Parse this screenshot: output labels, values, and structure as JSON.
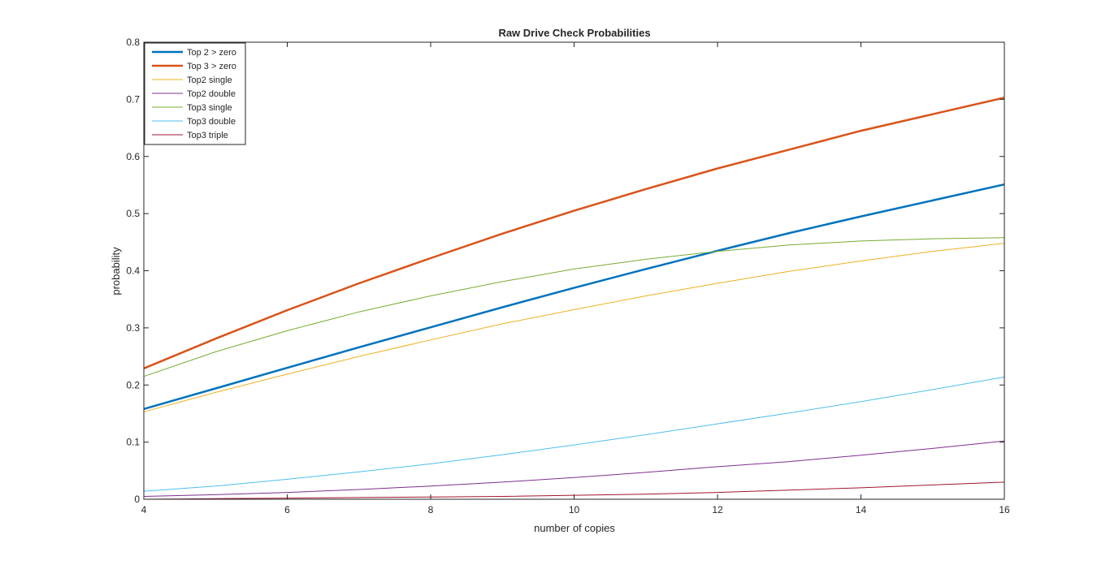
{
  "chart_data": {
    "type": "line",
    "title": "Raw Drive Check Probabilities",
    "xlabel": "number of copies",
    "ylabel": "probability",
    "xlim": [
      4,
      16
    ],
    "ylim": [
      0,
      0.8
    ],
    "x_ticks": [
      "4",
      "6",
      "8",
      "10",
      "12",
      "14",
      "16"
    ],
    "y_ticks": [
      "0",
      "0.1",
      "0.2",
      "0.3",
      "0.4",
      "0.5",
      "0.6",
      "0.7",
      "0.8"
    ],
    "grid": false,
    "legend_position": "top-left",
    "x": [
      4,
      5,
      6,
      7,
      8,
      9,
      10,
      11,
      12,
      13,
      14,
      15,
      16
    ],
    "series": [
      {
        "name": "Top 2 > zero",
        "color": "#0072BD",
        "thick": true,
        "values": [
          0.158,
          0.194,
          0.23,
          0.266,
          0.301,
          0.336,
          0.37,
          0.403,
          0.435,
          0.466,
          0.495,
          0.523,
          0.551
        ]
      },
      {
        "name": "Top 3 > zero",
        "color": "#D95319",
        "thick": true,
        "values": [
          0.229,
          0.281,
          0.331,
          0.378,
          0.422,
          0.465,
          0.505,
          0.543,
          0.579,
          0.612,
          0.645,
          0.674,
          0.703
        ]
      },
      {
        "name": "Top2 single",
        "color": "#EDB120",
        "thick": false,
        "values": [
          0.153,
          0.187,
          0.219,
          0.25,
          0.279,
          0.307,
          0.332,
          0.356,
          0.378,
          0.399,
          0.417,
          0.434,
          0.448
        ]
      },
      {
        "name": "Top2 double",
        "color": "#7E2F8E",
        "thick": false,
        "values": [
          0.005,
          0.008,
          0.012,
          0.017,
          0.023,
          0.03,
          0.038,
          0.047,
          0.057,
          0.066,
          0.077,
          0.089,
          0.102
        ]
      },
      {
        "name": "Top3 single",
        "color": "#77AC30",
        "thick": false,
        "values": [
          0.215,
          0.258,
          0.295,
          0.328,
          0.356,
          0.381,
          0.403,
          0.42,
          0.434,
          0.445,
          0.452,
          0.456,
          0.458
        ]
      },
      {
        "name": "Top3 double",
        "color": "#4DBEEE",
        "thick": false,
        "values": [
          0.014,
          0.023,
          0.035,
          0.048,
          0.062,
          0.078,
          0.095,
          0.113,
          0.132,
          0.151,
          0.171,
          0.192,
          0.214
        ]
      },
      {
        "name": "Top3 triple",
        "color": "#A2142F",
        "thick": false,
        "values": [
          0.0,
          0.001,
          0.002,
          0.003,
          0.004,
          0.005,
          0.007,
          0.009,
          0.012,
          0.016,
          0.02,
          0.025,
          0.03
        ]
      }
    ]
  }
}
